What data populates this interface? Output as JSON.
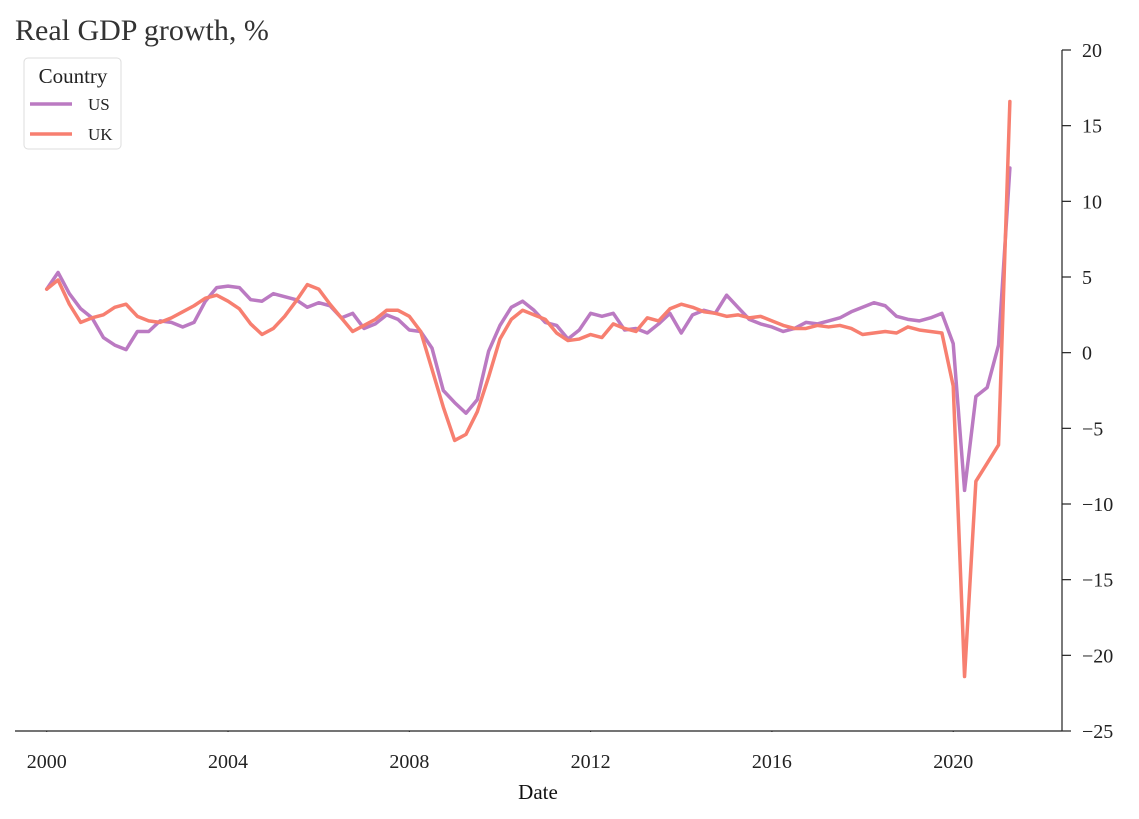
{
  "chart_data": {
    "type": "line",
    "title": "Real GDP growth, %",
    "xlabel": "Date",
    "ylabel": "",
    "ylim": [
      -25,
      20
    ],
    "xlim": [
      1999.3,
      2022.4
    ],
    "y_axis_side": "right",
    "grid": false,
    "legend": {
      "title": "Country",
      "placement": "top-left"
    },
    "x_ticks": [
      2000,
      2004,
      2008,
      2012,
      2016,
      2020
    ],
    "y_ticks": [
      20,
      15,
      10,
      5,
      0,
      -5,
      -10,
      -15,
      -20,
      -25
    ],
    "y_tick_labels": [
      "20",
      "15",
      "10",
      "5",
      "0",
      "−5",
      "−10",
      "−15",
      "−20",
      "−25"
    ],
    "x": [
      2000.0,
      2000.25,
      2000.5,
      2000.75,
      2001.0,
      2001.25,
      2001.5,
      2001.75,
      2002.0,
      2002.25,
      2002.5,
      2002.75,
      2003.0,
      2003.25,
      2003.5,
      2003.75,
      2004.0,
      2004.25,
      2004.5,
      2004.75,
      2005.0,
      2005.25,
      2005.5,
      2005.75,
      2006.0,
      2006.25,
      2006.5,
      2006.75,
      2007.0,
      2007.25,
      2007.5,
      2007.75,
      2008.0,
      2008.25,
      2008.5,
      2008.75,
      2009.0,
      2009.25,
      2009.5,
      2009.75,
      2010.0,
      2010.25,
      2010.5,
      2010.75,
      2011.0,
      2011.25,
      2011.5,
      2011.75,
      2012.0,
      2012.25,
      2012.5,
      2012.75,
      2013.0,
      2013.25,
      2013.5,
      2013.75,
      2014.0,
      2014.25,
      2014.5,
      2014.75,
      2015.0,
      2015.25,
      2015.5,
      2015.75,
      2016.0,
      2016.25,
      2016.5,
      2016.75,
      2017.0,
      2017.25,
      2017.5,
      2017.75,
      2018.0,
      2018.25,
      2018.5,
      2018.75,
      2019.0,
      2019.25,
      2019.5,
      2019.75,
      2020.0,
      2020.25,
      2020.5,
      2020.75,
      2021.0,
      2021.25
    ],
    "series": [
      {
        "name": "US",
        "color": "#bb7ac2",
        "values": [
          4.2,
          5.3,
          3.9,
          2.9,
          2.3,
          1.0,
          0.5,
          0.2,
          1.4,
          1.4,
          2.1,
          2.0,
          1.7,
          2.0,
          3.4,
          4.3,
          4.4,
          4.3,
          3.5,
          3.4,
          3.9,
          3.7,
          3.5,
          3.0,
          3.3,
          3.1,
          2.3,
          2.6,
          1.6,
          1.9,
          2.5,
          2.2,
          1.5,
          1.4,
          0.3,
          -2.5,
          -3.3,
          -4.0,
          -3.1,
          0.1,
          1.8,
          3.0,
          3.4,
          2.8,
          2.0,
          1.8,
          0.9,
          1.5,
          2.6,
          2.4,
          2.6,
          1.5,
          1.6,
          1.3,
          1.9,
          2.6,
          1.3,
          2.5,
          2.8,
          2.6,
          3.8,
          3.0,
          2.2,
          1.9,
          1.7,
          1.4,
          1.6,
          2.0,
          1.9,
          2.1,
          2.3,
          2.7,
          3.0,
          3.3,
          3.1,
          2.4,
          2.2,
          2.1,
          2.3,
          2.6,
          0.6,
          -9.1,
          -2.9,
          -2.3,
          0.5,
          12.2
        ]
      },
      {
        "name": "UK",
        "color": "#f77f70",
        "values": [
          4.2,
          4.8,
          3.2,
          2.0,
          2.3,
          2.5,
          3.0,
          3.2,
          2.4,
          2.1,
          2.0,
          2.3,
          2.7,
          3.1,
          3.6,
          3.8,
          3.4,
          2.9,
          1.9,
          1.2,
          1.6,
          2.4,
          3.4,
          4.5,
          4.2,
          3.2,
          2.3,
          1.4,
          1.8,
          2.2,
          2.8,
          2.8,
          2.4,
          1.4,
          -1.1,
          -3.6,
          -5.8,
          -5.4,
          -3.9,
          -1.6,
          0.9,
          2.2,
          2.8,
          2.5,
          2.2,
          1.3,
          0.8,
          0.9,
          1.2,
          1.0,
          1.9,
          1.6,
          1.4,
          2.3,
          2.1,
          2.9,
          3.2,
          3.0,
          2.7,
          2.6,
          2.4,
          2.5,
          2.3,
          2.4,
          2.1,
          1.8,
          1.6,
          1.6,
          1.8,
          1.7,
          1.8,
          1.6,
          1.2,
          1.3,
          1.4,
          1.3,
          1.7,
          1.5,
          1.4,
          1.3,
          -2.2,
          -21.4,
          -8.5,
          -7.3,
          -6.1,
          16.6
        ]
      }
    ]
  }
}
